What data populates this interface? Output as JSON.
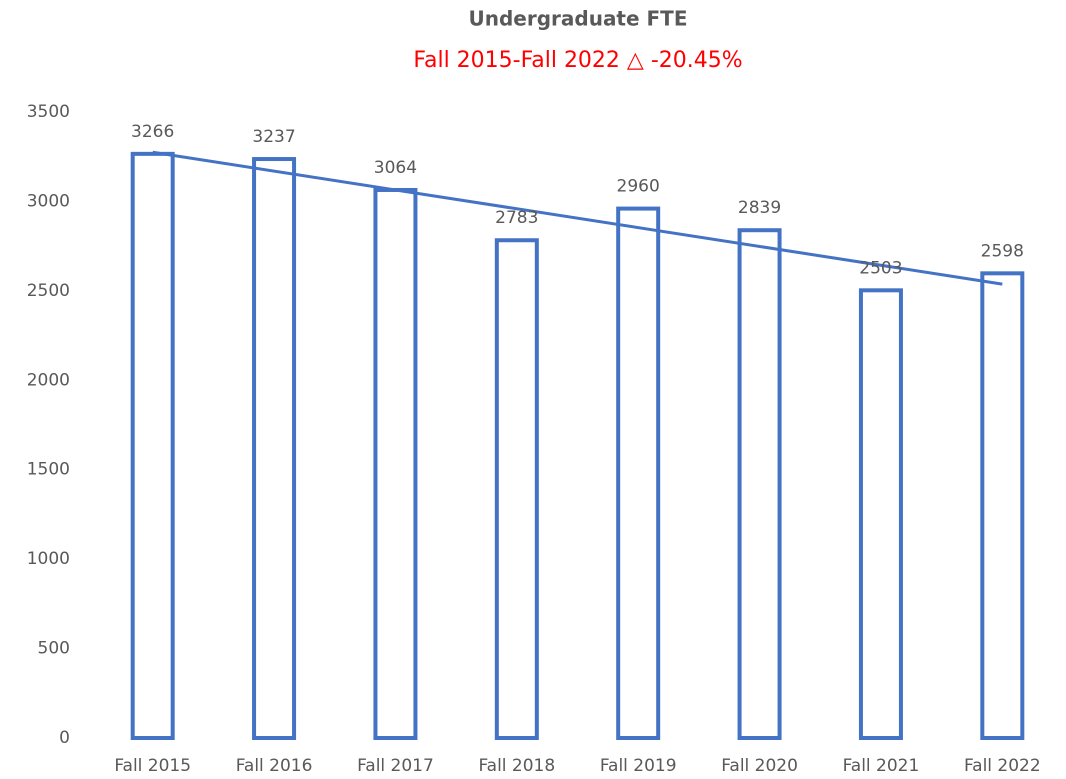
{
  "chart_data": {
    "type": "bar",
    "title": "Undergraduate FTE",
    "subtitle": "Fall 2015-Fall 2022 △ -20.45%",
    "categories": [
      "Fall 2015",
      "Fall 2016",
      "Fall 2017",
      "Fall 2018",
      "Fall 2019",
      "Fall 2020",
      "Fall 2021",
      "Fall 2022"
    ],
    "values": [
      3266,
      3237,
      3064,
      2783,
      2960,
      2839,
      2503,
      2598
    ],
    "color": "#4472c4",
    "trendline": true,
    "ylim": [
      0,
      3500
    ],
    "yticks": [
      0,
      500,
      1000,
      1500,
      2000,
      2500,
      3000,
      3500
    ],
    "grid": false
  }
}
